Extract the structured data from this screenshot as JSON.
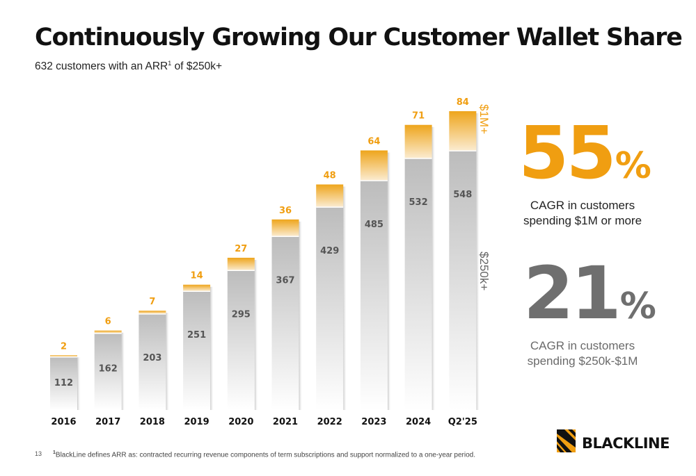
{
  "header": {
    "title": "Continuously Growing Our Customer Wallet Share",
    "subtitle_prefix": "632 customers with an ARR",
    "subtitle_sup": "1",
    "subtitle_suffix": " of $250k+"
  },
  "chart_data": {
    "type": "bar",
    "stacked": true,
    "categories": [
      "2016",
      "2017",
      "2018",
      "2019",
      "2020",
      "2021",
      "2022",
      "2023",
      "2024",
      "Q2'25"
    ],
    "series": [
      {
        "name": "$250k+",
        "values": [
          112,
          162,
          203,
          251,
          295,
          367,
          429,
          485,
          532,
          548
        ],
        "color": "#bdbdbd"
      },
      {
        "name": "$1M+",
        "values": [
          2,
          6,
          7,
          14,
          27,
          36,
          48,
          64,
          71,
          84
        ],
        "color": "#f09e11"
      }
    ],
    "ylim": [
      0,
      640
    ],
    "grid": false,
    "legend": "right-side vertical labels"
  },
  "stats": [
    {
      "number": "55",
      "symbol": "%",
      "caption_line1": "CAGR in customers",
      "caption_line2": "spending $1M or more",
      "color": "#f09e11"
    },
    {
      "number": "21",
      "symbol": "%",
      "caption_line1": "CAGR in customers",
      "caption_line2": "spending $250k-$1M",
      "color": "#6f6f6f"
    }
  ],
  "footer": {
    "page_number": "13",
    "footnote_sup": "1",
    "footnote_text": "BlackLine defines ARR as: contracted recurring revenue components of term subscriptions and support normalized to a one-year period."
  },
  "brand": {
    "logo_text": "BLACKLINE",
    "logo_icon": "blackline-mark-icon",
    "accent": "#f09e11"
  }
}
